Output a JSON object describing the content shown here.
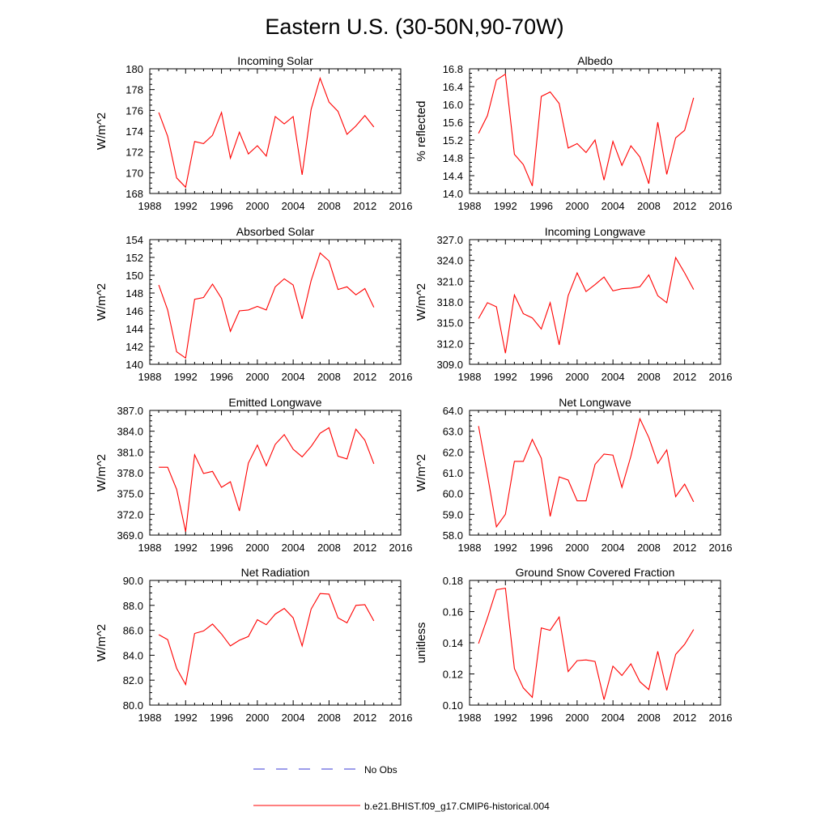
{
  "title": "Eastern U.S. (30-50N,90-70W)",
  "legend": {
    "obs_label": "No Obs",
    "model_label": "b.e21.BHIST.f09_g17.CMIP6-historical.004",
    "obs_color": "#3b3bd6",
    "model_color": "#ff0000"
  },
  "chart_data": [
    {
      "type": "line",
      "title": "Incoming Solar",
      "ylabel": "W/m^2",
      "xlim": [
        1988,
        2016
      ],
      "xticks": [
        1988,
        1992,
        1996,
        2000,
        2004,
        2008,
        2012,
        2016
      ],
      "ylim": [
        168,
        180
      ],
      "yticks": [
        "168",
        "170",
        "172",
        "174",
        "176",
        "178",
        "180"
      ],
      "x": [
        1989,
        1990,
        1991,
        1992,
        1993,
        1994,
        1995,
        1996,
        1997,
        1998,
        1999,
        2000,
        2001,
        2002,
        2003,
        2004,
        2005,
        2006,
        2007,
        2008,
        2009,
        2010,
        2011,
        2012,
        2013
      ],
      "values": [
        175.8,
        173.5,
        169.5,
        168.6,
        173.0,
        172.8,
        173.6,
        175.8,
        171.4,
        173.9,
        171.8,
        172.6,
        171.6,
        175.4,
        174.7,
        175.4,
        169.8,
        176.1,
        179.1,
        176.8,
        175.9,
        173.7,
        174.5,
        175.5,
        174.4
      ]
    },
    {
      "type": "line",
      "title": "Albedo",
      "ylabel": "% reflected",
      "xlim": [
        1988,
        2016
      ],
      "xticks": [
        1988,
        1992,
        1996,
        2000,
        2004,
        2008,
        2012,
        2016
      ],
      "ylim": [
        14.0,
        16.8
      ],
      "yticks": [
        "14.0",
        "14.4",
        "14.8",
        "15.2",
        "15.6",
        "16.0",
        "16.4",
        "16.8"
      ],
      "x": [
        1989,
        1990,
        1991,
        1992,
        1993,
        1994,
        1995,
        1996,
        1997,
        1998,
        1999,
        2000,
        2001,
        2002,
        2003,
        2004,
        2005,
        2006,
        2007,
        2008,
        2009,
        2010,
        2011,
        2012,
        2013
      ],
      "values": [
        15.35,
        15.75,
        16.55,
        16.68,
        14.88,
        14.65,
        14.17,
        16.18,
        16.28,
        16.02,
        15.02,
        15.12,
        14.92,
        15.2,
        14.3,
        15.17,
        14.63,
        15.07,
        14.82,
        14.22,
        15.6,
        14.43,
        15.25,
        15.42,
        16.15
      ]
    },
    {
      "type": "line",
      "title": "Absorbed Solar",
      "ylabel": "W/m^2",
      "xlim": [
        1988,
        2016
      ],
      "xticks": [
        1988,
        1992,
        1996,
        2000,
        2004,
        2008,
        2012,
        2016
      ],
      "ylim": [
        140,
        154
      ],
      "yticks": [
        "140",
        "142",
        "144",
        "146",
        "148",
        "150",
        "152",
        "154"
      ],
      "x": [
        1989,
        1990,
        1991,
        1992,
        1993,
        1994,
        1995,
        1996,
        1997,
        1998,
        1999,
        2000,
        2001,
        2002,
        2003,
        2004,
        2005,
        2006,
        2007,
        2008,
        2009,
        2010,
        2011,
        2012,
        2013
      ],
      "values": [
        148.9,
        146.1,
        141.4,
        140.7,
        147.3,
        147.5,
        149.0,
        147.4,
        143.7,
        146.0,
        146.1,
        146.5,
        146.1,
        148.7,
        149.6,
        148.9,
        145.1,
        149.4,
        152.5,
        151.6,
        148.4,
        148.7,
        147.8,
        148.5,
        146.4
      ]
    },
    {
      "type": "line",
      "title": "Incoming Longwave",
      "ylabel": "W/m^2",
      "xlim": [
        1988,
        2016
      ],
      "xticks": [
        1988,
        1992,
        1996,
        2000,
        2004,
        2008,
        2012,
        2016
      ],
      "ylim": [
        309.0,
        327.0
      ],
      "yticks": [
        "309.0",
        "312.0",
        "315.0",
        "318.0",
        "321.0",
        "324.0",
        "327.0"
      ],
      "x": [
        1989,
        1990,
        1991,
        1992,
        1993,
        1994,
        1995,
        1996,
        1997,
        1998,
        1999,
        2000,
        2001,
        2002,
        2003,
        2004,
        2005,
        2006,
        2007,
        2008,
        2009,
        2010,
        2011,
        2012,
        2013
      ],
      "values": [
        315.6,
        317.9,
        317.3,
        310.6,
        319.0,
        316.3,
        315.7,
        314.1,
        317.9,
        311.8,
        318.9,
        322.2,
        319.5,
        320.5,
        321.6,
        319.6,
        319.9,
        320.0,
        320.2,
        321.9,
        318.9,
        317.9,
        324.4,
        322.2,
        319.8
      ]
    },
    {
      "type": "line",
      "title": "Emitted Longwave",
      "ylabel": "W/m^2",
      "xlim": [
        1988,
        2016
      ],
      "xticks": [
        1988,
        1992,
        1996,
        2000,
        2004,
        2008,
        2012,
        2016
      ],
      "ylim": [
        369.0,
        387.0
      ],
      "yticks": [
        "369.0",
        "372.0",
        "375.0",
        "378.0",
        "381.0",
        "384.0",
        "387.0"
      ],
      "x": [
        1989,
        1990,
        1991,
        1992,
        1993,
        1994,
        1995,
        1996,
        1997,
        1998,
        1999,
        2000,
        2001,
        2002,
        2003,
        2004,
        2005,
        2006,
        2007,
        2008,
        2009,
        2010,
        2011,
        2012,
        2013
      ],
      "values": [
        378.8,
        378.8,
        375.6,
        369.5,
        380.6,
        377.9,
        378.2,
        375.9,
        376.7,
        372.5,
        379.4,
        382.0,
        379.0,
        382.1,
        383.5,
        381.4,
        380.3,
        381.8,
        383.7,
        384.5,
        380.4,
        380.0,
        384.3,
        382.7,
        379.3
      ]
    },
    {
      "type": "line",
      "title": "Net Longwave",
      "ylabel": "W/m^2",
      "xlim": [
        1988,
        2016
      ],
      "xticks": [
        1988,
        1992,
        1996,
        2000,
        2004,
        2008,
        2012,
        2016
      ],
      "ylim": [
        58.0,
        64.0
      ],
      "yticks": [
        "58.0",
        "59.0",
        "60.0",
        "61.0",
        "62.0",
        "63.0",
        "64.0"
      ],
      "x": [
        1989,
        1990,
        1991,
        1992,
        1993,
        1994,
        1995,
        1996,
        1997,
        1998,
        1999,
        2000,
        2001,
        2002,
        2003,
        2004,
        2005,
        2006,
        2007,
        2008,
        2009,
        2010,
        2011,
        2012,
        2013
      ],
      "values": [
        63.25,
        60.9,
        58.4,
        59.0,
        61.55,
        61.55,
        62.6,
        61.7,
        58.9,
        60.8,
        60.65,
        59.65,
        59.65,
        61.4,
        61.9,
        61.85,
        60.3,
        61.8,
        63.6,
        62.7,
        61.45,
        62.1,
        59.85,
        60.45,
        59.6
      ]
    },
    {
      "type": "line",
      "title": "Net Radiation",
      "ylabel": "W/m^2",
      "xlim": [
        1988,
        2016
      ],
      "xticks": [
        1988,
        1992,
        1996,
        2000,
        2004,
        2008,
        2012,
        2016
      ],
      "ylim": [
        80.0,
        90.0
      ],
      "yticks": [
        "80.0",
        "82.0",
        "84.0",
        "86.0",
        "88.0",
        "90.0"
      ],
      "x": [
        1989,
        1990,
        1991,
        1992,
        1993,
        1994,
        1995,
        1996,
        1997,
        1998,
        1999,
        2000,
        2001,
        2002,
        2003,
        2004,
        2005,
        2006,
        2007,
        2008,
        2009,
        2010,
        2011,
        2012,
        2013
      ],
      "values": [
        85.65,
        85.25,
        82.95,
        81.65,
        85.75,
        85.95,
        86.5,
        85.7,
        84.75,
        85.2,
        85.5,
        86.85,
        86.45,
        87.3,
        87.75,
        87.0,
        84.75,
        87.7,
        88.95,
        88.9,
        87.0,
        86.6,
        88.0,
        88.05,
        86.75
      ]
    },
    {
      "type": "line",
      "title": "Ground Snow Covered Fraction",
      "ylabel": "unitless",
      "xlim": [
        1988,
        2016
      ],
      "xticks": [
        1988,
        1992,
        1996,
        2000,
        2004,
        2008,
        2012,
        2016
      ],
      "ylim": [
        0.1,
        0.18
      ],
      "yticks": [
        "0.10",
        "0.12",
        "0.14",
        "0.16",
        "0.18"
      ],
      "x": [
        1989,
        1990,
        1991,
        1992,
        1993,
        1994,
        1995,
        1996,
        1997,
        1998,
        1999,
        2000,
        2001,
        2002,
        2003,
        2004,
        2005,
        2006,
        2007,
        2008,
        2009,
        2010,
        2011,
        2012,
        2013
      ],
      "values": [
        0.1395,
        0.156,
        0.174,
        0.175,
        0.1235,
        0.111,
        0.105,
        0.1495,
        0.148,
        0.1565,
        0.1215,
        0.1285,
        0.129,
        0.128,
        0.1035,
        0.125,
        0.119,
        0.1265,
        0.115,
        0.11,
        0.1345,
        0.1095,
        0.1325,
        0.139,
        0.1485
      ]
    }
  ]
}
